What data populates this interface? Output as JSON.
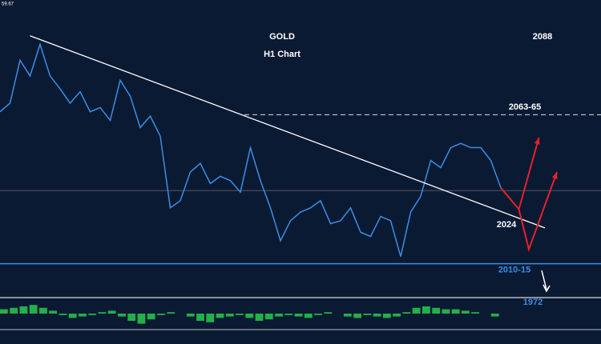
{
  "corner_label": "59.67",
  "chart_data": [
    {
      "type": "line",
      "title": "GOLD",
      "subtitle": "H1 Chart",
      "color": "#3a8ee6",
      "ylim": [
        1984,
        2104
      ],
      "values": [
        2065,
        2068,
        2083,
        2077.5,
        2088.5,
        2077.5,
        2073,
        2068,
        2072,
        2065,
        2066.5,
        2062,
        2076,
        2070.5,
        2059.5,
        2063.5,
        2056.5,
        2031.5,
        2034,
        2044,
        2047,
        2040,
        2042.5,
        2041,
        2037,
        2052.5,
        2041,
        2031.5,
        2020,
        2027,
        2030,
        2031.5,
        2034,
        2026,
        2027,
        2031.5,
        2023,
        2021.5,
        2028.5,
        2027,
        2014.5,
        2030,
        2035.5,
        2048,
        2045.5,
        2052.5,
        2054,
        2052.5,
        2052.5,
        2048,
        2038.5
      ],
      "trendline": {
        "x": [
          3,
          54.4
        ],
        "y": [
          2091.5,
          2024.5
        ]
      },
      "projections": [
        {
          "x": [
            50,
            51.8,
            53.8
          ],
          "y": [
            2038.5,
            2031,
            2056
          ]
        },
        {
          "x": [
            51.8,
            52.8,
            55.6
          ],
          "y": [
            2031,
            2017,
            2044
          ]
        }
      ],
      "levels": [
        {
          "value": 2064,
          "label": "2063-65"
        },
        {
          "value": 2037.5
        },
        {
          "value": 2012,
          "label": "2010-15"
        }
      ],
      "annotations": [
        "2088",
        "2024",
        "1972"
      ]
    },
    {
      "type": "bar",
      "ylim": [
        -10,
        10
      ],
      "values": [
        3,
        4,
        5,
        6,
        4,
        2,
        -1,
        -3,
        -2,
        -1,
        1,
        2,
        -2,
        -5,
        -7,
        -4,
        -1,
        1,
        0,
        -2,
        -5,
        -6,
        -3,
        -2,
        -1,
        -3,
        -5,
        -4,
        -2,
        -1,
        -2,
        -3,
        -1,
        1,
        0,
        -2,
        -3,
        -1,
        -2,
        -3,
        -2,
        1,
        4,
        5,
        4,
        3,
        3,
        2,
        1,
        0,
        -2
      ]
    }
  ]
}
